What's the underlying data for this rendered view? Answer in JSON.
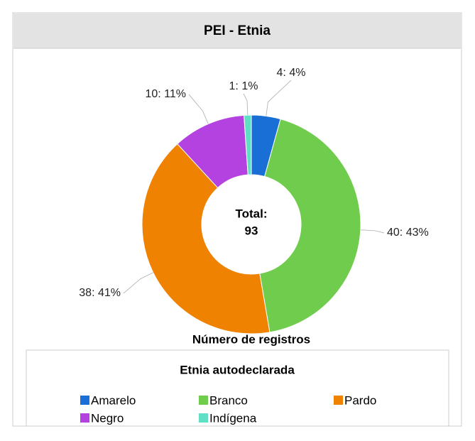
{
  "chart_data": {
    "type": "pie",
    "title": "PEI - Etnia",
    "categories": [
      "Amarelo",
      "Branco",
      "Pardo",
      "Negro",
      "Indígena"
    ],
    "values": [
      4,
      40,
      38,
      10,
      1
    ],
    "value_labels": [
      "4: 4%",
      "40: 43%",
      "38: 41%",
      "10: 11%",
      "1: 1%"
    ],
    "colors": [
      "#1a6fd6",
      "#6fcc4d",
      "#ef8200",
      "#b342e0",
      "#5fe0c4"
    ],
    "center_label": "Total:",
    "total": 93,
    "axis_label": "Número de registros",
    "legend_title": "Etnia autodeclarada"
  }
}
